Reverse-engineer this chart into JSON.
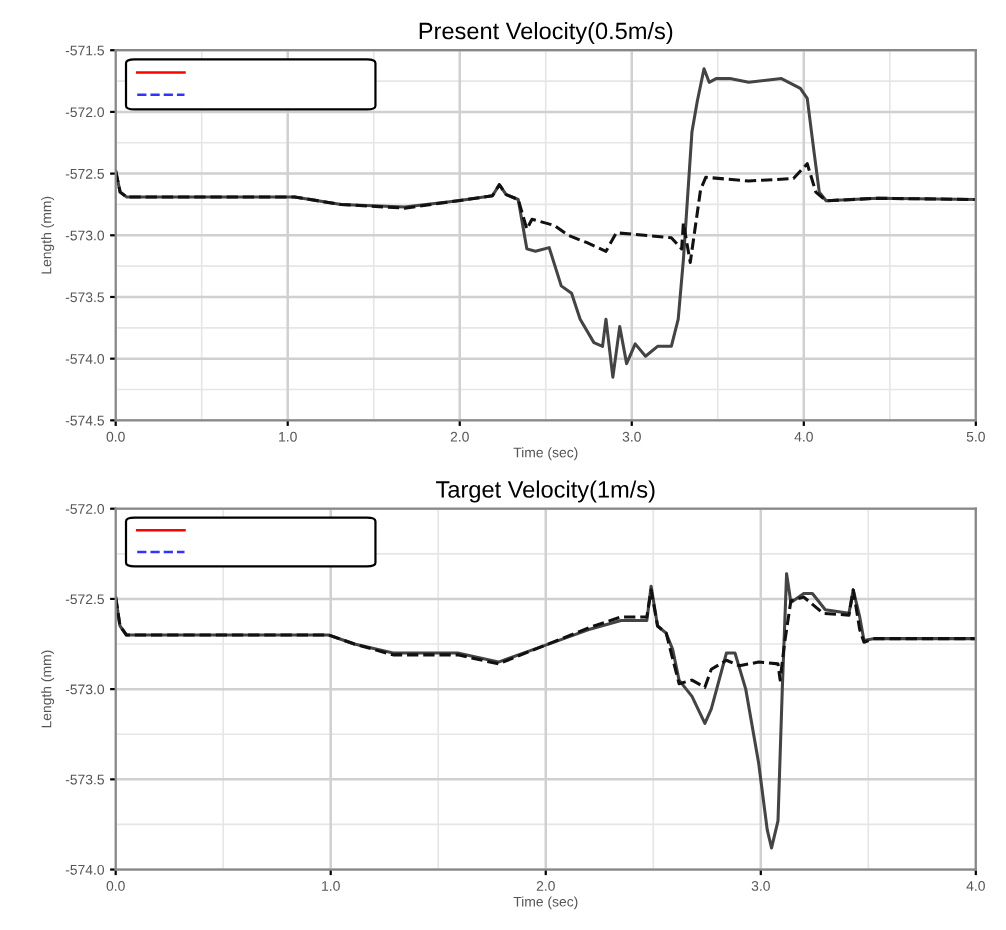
{
  "chart_data": [
    {
      "type": "line",
      "title": "Present Velocity(0.5m/s)",
      "xlabel": "Time (sec)",
      "ylabel": "Length (mm)",
      "xlim": [
        0,
        5
      ],
      "ylim": [
        -574.5,
        -571.5
      ],
      "xticks": [
        {
          "value": 0,
          "label": "0.0"
        },
        {
          "value": 1,
          "label": "1.0"
        },
        {
          "value": 2,
          "label": "2.0"
        },
        {
          "value": 3,
          "label": "3.0"
        },
        {
          "value": 4,
          "label": "4.0"
        },
        {
          "value": 5,
          "label": "5.0"
        }
      ],
      "yticks": [
        {
          "value": -571.5,
          "label": "-571.5"
        },
        {
          "value": -572,
          "label": "-572.0"
        },
        {
          "value": -572.5,
          "label": "-572.5"
        },
        {
          "value": -573,
          "label": "-573.0"
        },
        {
          "value": -573.5,
          "label": "-573.5"
        },
        {
          "value": -574,
          "label": "-574.0"
        },
        {
          "value": -574.5,
          "label": "-574.5"
        }
      ],
      "grid": true,
      "series": [
        {
          "color": "#444444",
          "line_style": "solid",
          "x": [
            0,
            0.026,
            0.064,
            1.04,
            1.31,
            1.68,
            1.99,
            2.19,
            2.23,
            2.27,
            2.34,
            2.36,
            2.39,
            2.44,
            2.52,
            2.59,
            2.65,
            2.7,
            2.78,
            2.83,
            2.85,
            2.89,
            2.93,
            2.97,
            3.02,
            3.08,
            3.15,
            3.23,
            3.27,
            3.3,
            3.35,
            3.38,
            3.42,
            3.45,
            3.49,
            3.57,
            3.68,
            3.87,
            3.98,
            4.02,
            4.06,
            4.09,
            4.13,
            4.43,
            5.0
          ],
          "values": [
            -572.48,
            -572.65,
            -572.69,
            -572.69,
            -572.75,
            -572.77,
            -572.72,
            -572.68,
            -572.59,
            -572.67,
            -572.71,
            -572.87,
            -573.11,
            -573.13,
            -573.1,
            -573.41,
            -573.47,
            -573.68,
            -573.87,
            -573.9,
            -573.68,
            -574.15,
            -573.74,
            -574.04,
            -573.88,
            -573.98,
            -573.9,
            -573.9,
            -573.68,
            -573.2,
            -572.16,
            -571.92,
            -571.65,
            -571.76,
            -571.73,
            -571.73,
            -571.76,
            -571.73,
            -571.81,
            -571.89,
            -572.33,
            -572.65,
            -572.72,
            -572.7,
            -572.71
          ]
        },
        {
          "color": "#111111",
          "line_style": "dashed",
          "x": [
            0,
            0.026,
            0.064,
            1.04,
            1.31,
            1.68,
            1.99,
            2.19,
            2.23,
            2.27,
            2.34,
            2.39,
            2.42,
            2.55,
            2.63,
            2.74,
            2.85,
            2.91,
            3.0,
            3.23,
            3.29,
            3.3,
            3.34,
            3.4,
            3.43,
            3.68,
            3.94,
            4.02,
            4.07,
            4.13,
            4.43,
            5.0
          ],
          "values": [
            -572.48,
            -572.65,
            -572.69,
            -572.69,
            -572.75,
            -572.78,
            -572.72,
            -572.68,
            -572.59,
            -572.67,
            -572.71,
            -572.95,
            -572.87,
            -572.92,
            -573.0,
            -573.06,
            -573.13,
            -572.98,
            -572.99,
            -573.02,
            -573.11,
            -572.9,
            -573.22,
            -572.63,
            -572.53,
            -572.56,
            -572.54,
            -572.42,
            -572.65,
            -572.72,
            -572.7,
            -572.71
          ]
        }
      ]
    },
    {
      "type": "line",
      "title": "Target Velocity(1m/s)",
      "xlabel": "Time (sec)",
      "ylabel": "Length (mm)",
      "xlim": [
        0,
        4
      ],
      "ylim": [
        -574,
        -572
      ],
      "xticks": [
        {
          "value": 0,
          "label": "0.0"
        },
        {
          "value": 1,
          "label": "1.0"
        },
        {
          "value": 2,
          "label": "2.0"
        },
        {
          "value": 3,
          "label": "3.0"
        },
        {
          "value": 4,
          "label": "4.0"
        }
      ],
      "yticks": [
        {
          "value": -572,
          "label": "-572.0"
        },
        {
          "value": -572.5,
          "label": "-572.5"
        },
        {
          "value": -573,
          "label": "-573.0"
        },
        {
          "value": -573.5,
          "label": "-573.5"
        },
        {
          "value": -574,
          "label": "-574.0"
        }
      ],
      "grid": true,
      "series": [
        {
          "color": "#444444",
          "line_style": "solid",
          "x": [
            0,
            0.02,
            0.05,
            0.99,
            1.11,
            1.29,
            1.59,
            1.78,
            1.99,
            2.2,
            2.35,
            2.47,
            2.49,
            2.52,
            2.56,
            2.59,
            2.62,
            2.68,
            2.74,
            2.77,
            2.84,
            2.88,
            2.93,
            2.99,
            3.03,
            3.05,
            3.08,
            3.1,
            3.12,
            3.14,
            3.2,
            3.24,
            3.3,
            3.41,
            3.43,
            3.46,
            3.48,
            3.53,
            4.0
          ],
          "values": [
            -572.49,
            -572.65,
            -572.7,
            -572.7,
            -572.75,
            -572.8,
            -572.8,
            -572.85,
            -572.76,
            -572.67,
            -572.62,
            -572.62,
            -572.43,
            -572.65,
            -572.69,
            -572.78,
            -572.95,
            -573.04,
            -573.19,
            -573.11,
            -572.8,
            -572.8,
            -573.0,
            -573.41,
            -573.78,
            -573.88,
            -573.73,
            -573.0,
            -572.36,
            -572.52,
            -572.47,
            -572.47,
            -572.56,
            -572.58,
            -572.45,
            -572.6,
            -572.73,
            -572.72,
            -572.72
          ]
        },
        {
          "color": "#111111",
          "line_style": "dashed",
          "x": [
            0,
            0.02,
            0.05,
            0.99,
            1.11,
            1.29,
            1.59,
            1.78,
            1.99,
            2.2,
            2.35,
            2.47,
            2.49,
            2.52,
            2.56,
            2.62,
            2.68,
            2.74,
            2.77,
            2.84,
            2.9,
            2.99,
            3.08,
            3.09,
            3.11,
            3.14,
            3.2,
            3.29,
            3.41,
            3.43,
            3.46,
            3.48,
            3.53,
            4.0
          ],
          "values": [
            -572.49,
            -572.65,
            -572.7,
            -572.7,
            -572.75,
            -572.81,
            -572.81,
            -572.86,
            -572.76,
            -572.66,
            -572.6,
            -572.6,
            -572.45,
            -572.65,
            -572.69,
            -572.97,
            -572.95,
            -572.99,
            -572.89,
            -572.84,
            -572.87,
            -572.85,
            -572.86,
            -572.95,
            -572.75,
            -572.51,
            -572.49,
            -572.58,
            -572.59,
            -572.45,
            -572.67,
            -572.74,
            -572.72,
            -572.72
          ]
        }
      ]
    }
  ]
}
